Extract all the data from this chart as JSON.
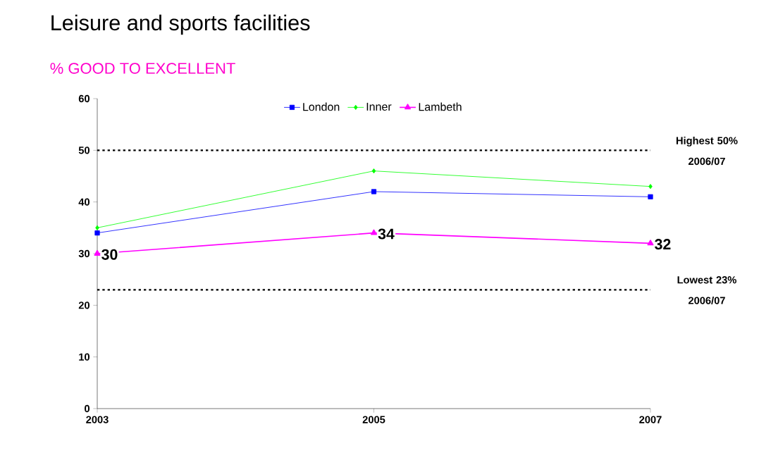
{
  "chart_data": {
    "type": "line",
    "title": "Leisure and sports facilities",
    "subtitle": "% GOOD TO EXCELLENT",
    "categories": [
      "2003",
      "2005",
      "2007"
    ],
    "series": [
      {
        "name": "London",
        "color": "#0000ff",
        "values": [
          34,
          42,
          41
        ],
        "marker": "square"
      },
      {
        "name": "Inner",
        "color": "#00ff00",
        "values": [
          35,
          46,
          43
        ],
        "marker": "diamond"
      },
      {
        "name": "Lambeth",
        "color": "#ff00ff",
        "values": [
          30,
          34,
          32
        ],
        "marker": "triangle",
        "value_labels": [
          "30",
          "34",
          "32"
        ]
      }
    ],
    "ylim": [
      0,
      60
    ],
    "yticks": [
      0,
      10,
      20,
      30,
      40,
      50,
      60
    ],
    "grid": false,
    "legend": "top",
    "line_style": "solid",
    "ref_lines": [
      {
        "axis": "y",
        "value": 50,
        "label": "Highest 50% 2006/07",
        "color": "#000000",
        "line_style": "dotted"
      },
      {
        "axis": "y",
        "value": 23,
        "label": "Lowest 23% 2006/07",
        "color": "#000000",
        "line_style": "dotted"
      }
    ]
  }
}
